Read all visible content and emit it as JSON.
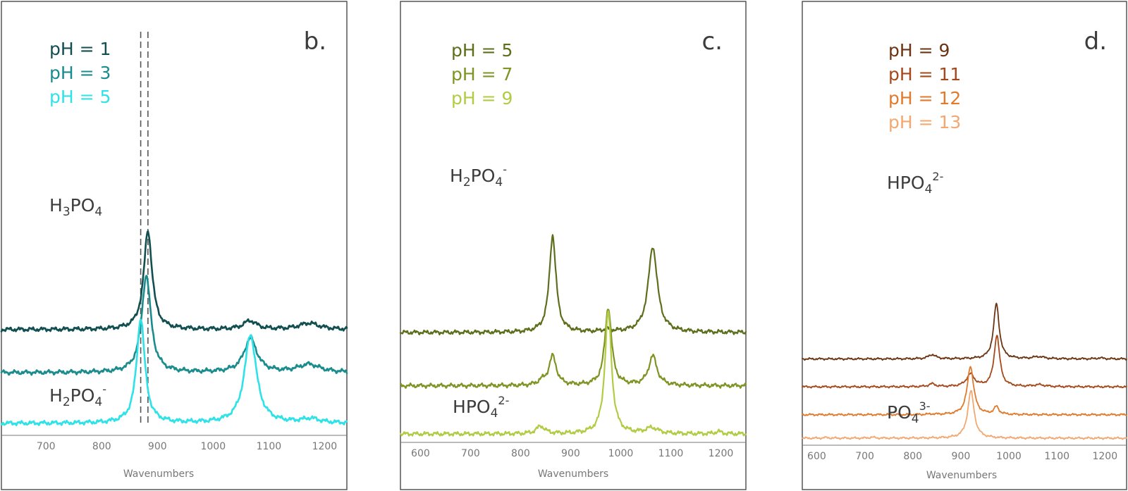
{
  "chart_data": [
    {
      "type": "line",
      "panel_label": "b.",
      "xlabel": "Wavenumbers",
      "ylabel": "",
      "xlim": [
        620,
        1240
      ],
      "xticks": [
        700,
        800,
        900,
        1000,
        1100,
        1200
      ],
      "grid": false,
      "y_axis_visible": false,
      "legend_position": "top-left",
      "dashed_markers_x": [
        870,
        883
      ],
      "series": [
        {
          "name": "pH = 1",
          "color": "#114f50",
          "offset": 0.74,
          "peaks": [
            [
              883,
              5.2,
              9
            ],
            [
              1066,
              0.45,
              14
            ],
            [
              1172,
              0.33,
              22
            ]
          ]
        },
        {
          "name": "pH = 3",
          "color": "#1a8c8d",
          "offset": 0.4,
          "peaks": [
            [
              880,
              5.1,
              10
            ],
            [
              1067,
              1.78,
              14
            ],
            [
              1172,
              0.42,
              24
            ]
          ]
        },
        {
          "name": "pH = 5",
          "color": "#2ee2e8",
          "offset": 0.0,
          "peaks": [
            [
              870,
              5.5,
              9
            ],
            [
              1067,
              4.65,
              13
            ],
            [
              1175,
              0.22,
              20
            ]
          ]
        }
      ],
      "species_labels": [
        {
          "base": "H",
          "sub1": "3",
          "mid": "PO",
          "sub2": "4",
          "sup": ""
        },
        {
          "base": "H",
          "sub1": "2",
          "mid": "PO",
          "sub2": "4",
          "sup": "-"
        }
      ]
    },
    {
      "type": "line",
      "panel_label": "c.",
      "xlabel": "Wavenumbers",
      "ylabel": "",
      "xlim": [
        560,
        1250
      ],
      "xticks": [
        600,
        700,
        800,
        900,
        1000,
        1100,
        1200
      ],
      "grid": false,
      "y_axis_visible": false,
      "legend_position": "top-left",
      "series": [
        {
          "name": "pH = 5",
          "color": "#5d6f1c",
          "offset": 0.8,
          "peaks": [
            [
              864,
              5.1,
              8
            ],
            [
              1064,
              4.5,
              11
            ],
            [
              973,
              0.12,
              10
            ]
          ]
        },
        {
          "name": "pH = 7",
          "color": "#7e9424",
          "offset": 0.38,
          "peaks": [
            [
              864,
              1.55,
              9
            ],
            [
              975,
              4.1,
              8
            ],
            [
              1064,
              1.55,
              10
            ],
            [
              842,
              0.2,
              8
            ]
          ]
        },
        {
          "name": "pH = 9",
          "color": "#b1cc44",
          "offset": 0.0,
          "peaks": [
            [
              975,
              6.4,
              8
            ],
            [
              840,
              0.4,
              10
            ],
            [
              1062,
              0.3,
              15
            ],
            [
              1195,
              0.12,
              8
            ]
          ]
        }
      ],
      "species_labels": [
        {
          "base": "H",
          "sub1": "2",
          "mid": "PO",
          "sub2": "4",
          "sup": "-"
        },
        {
          "base": "H",
          "sub1": "",
          "mid": "PO",
          "sub2": "4",
          "sup": "2-"
        }
      ]
    },
    {
      "type": "line",
      "panel_label": "d.",
      "xlabel": "Wavenumbers",
      "ylabel": "",
      "xlim": [
        570,
        1245
      ],
      "xticks": [
        600,
        700,
        800,
        900,
        1000,
        1100,
        1200
      ],
      "grid": false,
      "y_axis_visible": false,
      "legend_position": "top-left",
      "series": [
        {
          "name": "pH = 9",
          "color": "#6b3412",
          "offset": 1.25,
          "peaks": [
            [
              974,
              5.8,
              7
            ],
            [
              840,
              0.45,
              9
            ],
            [
              1062,
              0.22,
              14
            ],
            [
              1190,
              0.1,
              8
            ]
          ]
        },
        {
          "name": "pH = 11",
          "color": "#a5491b",
          "offset": 0.81,
          "peaks": [
            [
              975,
              5.4,
              7
            ],
            [
              920,
              1.3,
              10
            ],
            [
              840,
              0.3,
              8
            ],
            [
              1063,
              0.2,
              14
            ]
          ]
        },
        {
          "name": "pH = 12",
          "color": "#e07a2c",
          "offset": 0.37,
          "peaks": [
            [
              920,
              5.1,
              8
            ],
            [
              974,
              0.8,
              6
            ],
            [
              840,
              0.05,
              8
            ]
          ]
        },
        {
          "name": "pH = 13",
          "color": "#f2a870",
          "offset": 0.0,
          "peaks": [
            [
              921,
              4.95,
              8
            ],
            [
              715,
              0.1,
              6
            ],
            [
              620,
              0.06,
              6
            ]
          ]
        }
      ],
      "species_labels": [
        {
          "base": "",
          "sub1": "",
          "mid": "HPO",
          "sub2": "4",
          "sup": "2-"
        },
        {
          "base": "",
          "sub1": "",
          "mid": "PO",
          "sub2": "4",
          "sup": "3-"
        }
      ]
    }
  ]
}
